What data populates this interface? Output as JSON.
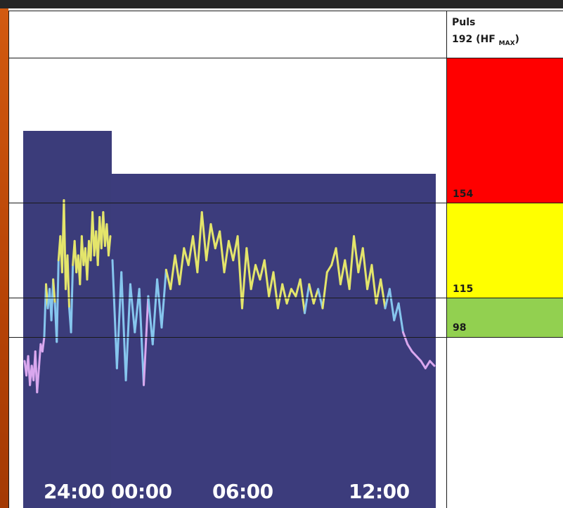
{
  "chart_data": {
    "type": "line",
    "table_header": {
      "title": "Puls",
      "max_value": "192",
      "max_label": "HF",
      "max_sub": "MAX"
    },
    "zones": [
      {
        "threshold": "154",
        "color": "#ff0000"
      },
      {
        "threshold": "115",
        "color": "#ffff00"
      },
      {
        "threshold": "98",
        "color": "#92d050"
      }
    ],
    "x_ticks": [
      "24:00",
      "00:00",
      "06:00",
      "12:00"
    ],
    "colors": {
      "above_115": "#e4e56b",
      "between_98_115": "#86c6ee",
      "below_98": "#d9a7ee"
    },
    "ylim": [
      70,
      175
    ],
    "segments": [
      {
        "name": "first-photo",
        "x": [
          0,
          0.5,
          1,
          1.5,
          2,
          2.5,
          3,
          3.5,
          4,
          4.5,
          5,
          5.5,
          6,
          6.5,
          7,
          7.5,
          8,
          8.5,
          9,
          9.5,
          10,
          10.5,
          11,
          11.5,
          12,
          12.5,
          13,
          13.5,
          14,
          14.5,
          15,
          15.5,
          16,
          16.5,
          17,
          17.5,
          18,
          18.5,
          19,
          19.5,
          20,
          20.5,
          21,
          21.5,
          22,
          22.5,
          23,
          23.5,
          24
        ],
        "y": [
          88,
          82,
          90,
          78,
          86,
          80,
          92,
          75,
          85,
          95,
          92,
          98,
          120,
          110,
          118,
          105,
          122,
          112,
          96,
          130,
          140,
          125,
          155,
          118,
          132,
          110,
          100,
          128,
          138,
          125,
          132,
          120,
          140,
          128,
          135,
          122,
          138,
          130,
          150,
          132,
          142,
          128,
          148,
          135,
          150,
          136,
          145,
          132,
          140
        ]
      },
      {
        "name": "second-photo",
        "x": [
          0,
          0.25,
          0.5,
          0.75,
          1,
          1.25,
          1.5,
          1.75,
          2,
          2.25,
          2.5,
          2.75,
          3,
          3.25,
          3.5,
          3.75,
          4,
          4.25,
          4.5,
          4.75,
          5,
          5.25,
          5.5,
          5.75,
          6,
          6.25,
          6.5,
          6.75,
          7,
          7.25,
          7.5,
          7.75,
          8,
          8.25,
          8.5,
          8.75,
          9,
          9.25,
          9.5,
          9.75,
          10,
          10.25,
          10.5,
          10.75,
          11,
          11.25,
          11.5,
          11.75,
          12,
          12.25,
          12.5,
          12.75,
          13,
          13.25,
          13.5,
          13.75,
          14,
          14.25,
          14.5,
          14.75,
          15,
          15.25,
          15.5,
          15.75,
          16,
          16.25,
          16.5,
          16.75,
          17,
          17.25,
          17.5,
          17.75,
          18
        ],
        "y": [
          130,
          85,
          125,
          80,
          120,
          100,
          118,
          78,
          115,
          95,
          122,
          102,
          126,
          118,
          132,
          120,
          135,
          128,
          140,
          125,
          150,
          130,
          145,
          135,
          142,
          125,
          138,
          130,
          140,
          110,
          135,
          118,
          128,
          122,
          130,
          115,
          125,
          110,
          120,
          112,
          118,
          115,
          122,
          108,
          120,
          112,
          118,
          110,
          125,
          128,
          135,
          120,
          130,
          118,
          140,
          125,
          135,
          118,
          128,
          112,
          122,
          110,
          118,
          105,
          112,
          100,
          95,
          92,
          90,
          88,
          85,
          88,
          86
        ]
      }
    ]
  }
}
